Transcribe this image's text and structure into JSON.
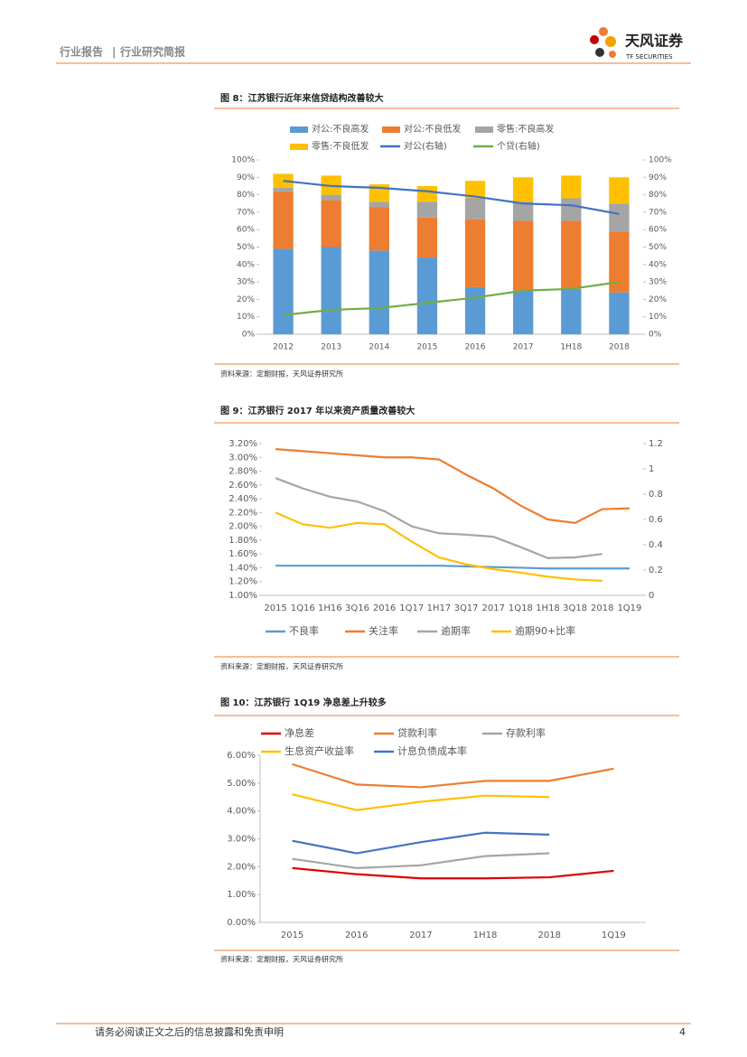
{
  "header": {
    "left": "行业报告",
    "sep": "|",
    "right": "行业研究简报",
    "logo": "天风证券",
    "logo_en": "TF SECURITIES"
  },
  "chart_data": [
    {
      "type": "bar",
      "stacked": true,
      "title": "图 8：江苏银行近年来信贷结构改善较大",
      "source": "资料来源：定期财报，天风证券研究所",
      "categories": [
        "2012",
        "2013",
        "2014",
        "2015",
        "2016",
        "2017",
        "1H18",
        "2018"
      ],
      "series": [
        {
          "name": "对公:不良高发",
          "color": "#5b9bd5",
          "values": [
            49,
            50,
            48,
            44,
            27,
            25,
            26,
            24
          ]
        },
        {
          "name": "对公:不良低发",
          "color": "#ed7d31",
          "values": [
            33,
            27,
            25,
            23,
            39,
            40,
            39,
            35
          ]
        },
        {
          "name": "零售:不良高发",
          "color": "#a5a5a5",
          "values": [
            2,
            3,
            3,
            9,
            12,
            11,
            13,
            16
          ]
        },
        {
          "name": "零售:不良低发",
          "color": "#ffc000",
          "values": [
            8,
            11,
            10,
            9,
            10,
            14,
            13,
            15
          ]
        },
        {
          "name": "对公(右轴)",
          "color": "#4472c4",
          "type": "line",
          "axis": "y2",
          "values": [
            88,
            85,
            84,
            82,
            79,
            75,
            74,
            69
          ]
        },
        {
          "name": "个贷(右轴)",
          "color": "#70ad47",
          "type": "line",
          "axis": "y2",
          "values": [
            11,
            14,
            15,
            18,
            21,
            25,
            26,
            30
          ]
        }
      ],
      "ylim": [
        0,
        100
      ],
      "yticks": [
        {
          "value": 0,
          "label": "0%"
        },
        {
          "value": 10,
          "label": "10%"
        },
        {
          "value": 20,
          "label": "20%"
        },
        {
          "value": 30,
          "label": "30%"
        },
        {
          "value": 40,
          "label": "40%"
        },
        {
          "value": 50,
          "label": "50%"
        },
        {
          "value": 60,
          "label": "60%"
        },
        {
          "value": 70,
          "label": "70%"
        },
        {
          "value": 80,
          "label": "80%"
        },
        {
          "value": 90,
          "label": "90%"
        },
        {
          "value": 100,
          "label": "100%"
        }
      ],
      "y2lim": [
        0,
        100
      ],
      "y2ticks": [
        {
          "value": 0,
          "label": "0%"
        },
        {
          "value": 10,
          "label": "10%"
        },
        {
          "value": 20,
          "label": "20%"
        },
        {
          "value": 30,
          "label": "30%"
        },
        {
          "value": 40,
          "label": "40%"
        },
        {
          "value": 50,
          "label": "50%"
        },
        {
          "value": 60,
          "label": "60%"
        },
        {
          "value": 70,
          "label": "70%"
        },
        {
          "value": 80,
          "label": "80%"
        },
        {
          "value": 90,
          "label": "90%"
        },
        {
          "value": 100,
          "label": "100%"
        }
      ],
      "grid": false
    },
    {
      "type": "line",
      "title": "图 9：江苏银行 2017 年以来资产质量改善较大",
      "source": "资料来源：定期财报，天风证券研究所",
      "categories": [
        "2015",
        "1Q16",
        "1H16",
        "3Q16",
        "2016",
        "1Q17",
        "1H17",
        "3Q17",
        "2017",
        "1Q18",
        "1H18",
        "3Q18",
        "2018",
        "1Q19"
      ],
      "series": [
        {
          "name": "不良率",
          "color": "#5b9bd5",
          "values": [
            1.43,
            1.43,
            1.43,
            1.43,
            1.43,
            1.43,
            1.43,
            1.42,
            1.41,
            1.4,
            1.39,
            1.39,
            1.39,
            1.39
          ]
        },
        {
          "name": "关注率",
          "color": "#ed7d31",
          "values": [
            3.12,
            3.09,
            3.06,
            3.03,
            3.0,
            3.0,
            2.97,
            2.75,
            2.55,
            2.3,
            2.1,
            2.05,
            2.25,
            2.26
          ]
        },
        {
          "name": "逾期率",
          "color": "#a5a5a5",
          "values": [
            2.7,
            2.55,
            2.43,
            2.36,
            2.22,
            2.0,
            1.9,
            1.88,
            1.85,
            1.7,
            1.54,
            1.55,
            1.6,
            null
          ]
        },
        {
          "name": "逾期90+比率",
          "color": "#ffc000",
          "values": [
            2.2,
            2.03,
            1.98,
            2.05,
            2.03,
            1.78,
            1.55,
            1.45,
            1.38,
            1.33,
            1.27,
            1.23,
            1.21,
            null
          ]
        }
      ],
      "ylim": [
        1.0,
        3.2
      ],
      "yticks": [
        {
          "value": 1.0,
          "label": "1.00%"
        },
        {
          "value": 1.2,
          "label": "1.20%"
        },
        {
          "value": 1.4,
          "label": "1.40%"
        },
        {
          "value": 1.6,
          "label": "1.60%"
        },
        {
          "value": 1.8,
          "label": "1.80%"
        },
        {
          "value": 2.0,
          "label": "2.00%"
        },
        {
          "value": 2.2,
          "label": "2.20%"
        },
        {
          "value": 2.4,
          "label": "2.40%"
        },
        {
          "value": 2.6,
          "label": "2.60%"
        },
        {
          "value": 2.8,
          "label": "2.80%"
        },
        {
          "value": 3.0,
          "label": "3.00%"
        },
        {
          "value": 3.2,
          "label": "3.20%"
        }
      ],
      "y2lim": [
        0,
        1.2
      ],
      "y2ticks": [
        0,
        0.2,
        0.4,
        0.6,
        0.8,
        1,
        1.2
      ],
      "grid": false
    },
    {
      "type": "line",
      "title": "图 10：江苏银行 1Q19 净息差上升较多",
      "source": "资料来源：定期财报，天风证券研究所",
      "categories": [
        "2015",
        "2016",
        "2017",
        "1H18",
        "2018",
        "1Q19"
      ],
      "series": [
        {
          "name": "净息差",
          "color": "#e00000",
          "values": [
            1.95,
            1.73,
            1.58,
            1.58,
            1.62,
            1.85
          ]
        },
        {
          "name": "贷款利率",
          "color": "#ed7d31",
          "values": [
            5.68,
            4.95,
            4.85,
            5.08,
            5.08,
            5.52
          ]
        },
        {
          "name": "存款利率",
          "color": "#a5a5a5",
          "values": [
            2.28,
            1.95,
            2.05,
            2.38,
            2.48,
            null
          ]
        },
        {
          "name": "生息资产收益率",
          "color": "#ffc000",
          "values": [
            4.6,
            4.03,
            4.33,
            4.55,
            4.5,
            null
          ]
        },
        {
          "name": "计息负债成本率",
          "color": "#4472c4",
          "values": [
            2.93,
            2.48,
            2.88,
            3.22,
            3.15,
            null
          ]
        }
      ],
      "ylim": [
        0,
        6
      ],
      "yticks": [
        {
          "value": 0,
          "label": "0.00%"
        },
        {
          "value": 1,
          "label": "1.00%"
        },
        {
          "value": 2,
          "label": "2.00%"
        },
        {
          "value": 3,
          "label": "3.00%"
        },
        {
          "value": 4,
          "label": "4.00%"
        },
        {
          "value": 5,
          "label": "5.00%"
        },
        {
          "value": 6,
          "label": "6.00%"
        }
      ],
      "grid": false
    }
  ],
  "footer": {
    "disclaimer": "请务必阅读正文之后的信息披露和免责申明",
    "page": "4"
  }
}
